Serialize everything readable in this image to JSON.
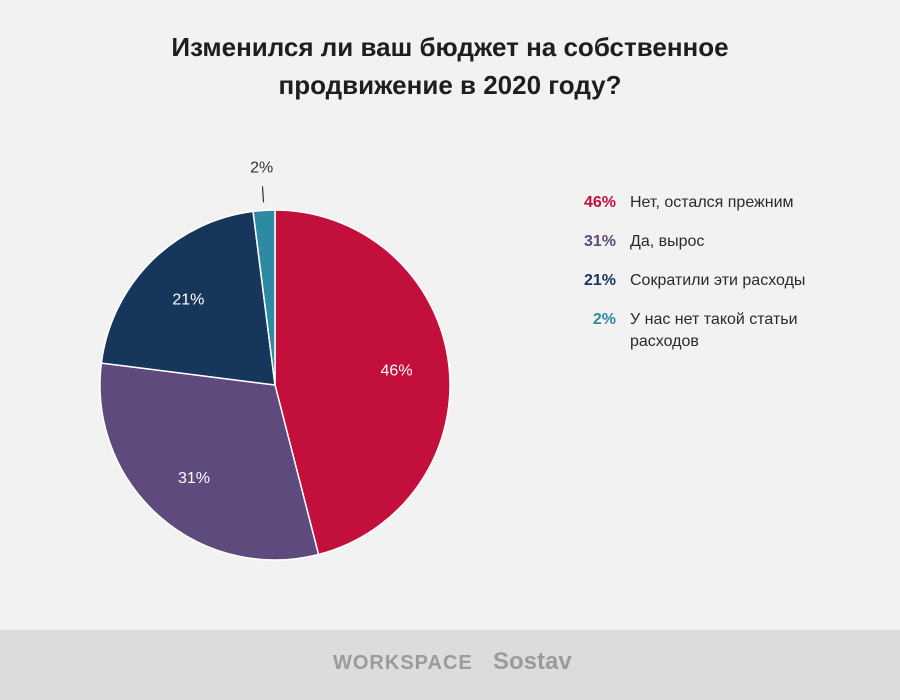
{
  "chart_data": {
    "type": "pie",
    "title": "Изменился ли ваш бюджет на собственное продвижение в 2020 году?",
    "title_lines": [
      "Изменился ли ваш бюджет на собственное",
      "продвижение в 2020 году?"
    ],
    "slices": [
      {
        "label": "Нет, остался прежним",
        "value": 46,
        "value_label": "46%",
        "color": "#c30f3c"
      },
      {
        "label": "Да, вырос",
        "value": 31,
        "value_label": "31%",
        "color": "#5e4a7c"
      },
      {
        "label": "Сократили эти расходы",
        "value": 21,
        "value_label": "21%",
        "color": "#17365b"
      },
      {
        "label": "У нас нет такой статьи расходов",
        "value": 2,
        "value_label": "2%",
        "color": "#2e8aa3"
      }
    ],
    "legend_position": "right"
  },
  "footer": {
    "logo_workspace": "WORKSPACE",
    "logo_sostav": "Sostav"
  }
}
